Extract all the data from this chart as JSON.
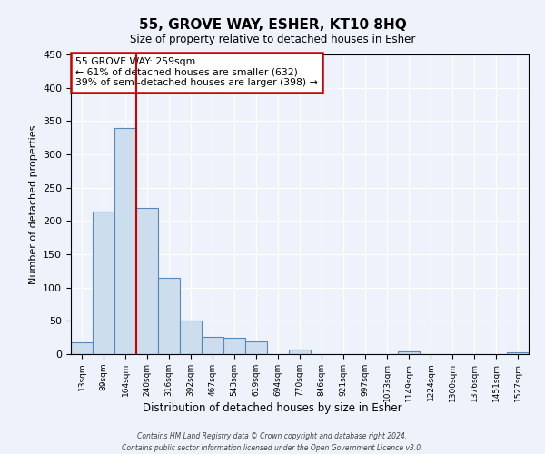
{
  "title": "55, GROVE WAY, ESHER, KT10 8HQ",
  "subtitle": "Size of property relative to detached houses in Esher",
  "xlabel": "Distribution of detached houses by size in Esher",
  "ylabel": "Number of detached properties",
  "bar_labels": [
    "13sqm",
    "89sqm",
    "164sqm",
    "240sqm",
    "316sqm",
    "392sqm",
    "467sqm",
    "543sqm",
    "619sqm",
    "694sqm",
    "770sqm",
    "846sqm",
    "921sqm",
    "997sqm",
    "1073sqm",
    "1149sqm",
    "1224sqm",
    "1300sqm",
    "1376sqm",
    "1451sqm",
    "1527sqm"
  ],
  "bar_values": [
    18,
    214,
    340,
    220,
    115,
    50,
    26,
    24,
    19,
    0,
    7,
    0,
    0,
    0,
    0,
    4,
    0,
    0,
    0,
    0,
    3
  ],
  "bar_color": "#ccdded",
  "bar_edge_color": "#5588bb",
  "vline_x_index": 3,
  "vline_color": "#cc0000",
  "annotation_title": "55 GROVE WAY: 259sqm",
  "annotation_line1": "← 61% of detached houses are smaller (632)",
  "annotation_line2": "39% of semi-detached houses are larger (398) →",
  "annotation_box_color": "#cc0000",
  "ylim": [
    0,
    450
  ],
  "yticks": [
    0,
    50,
    100,
    150,
    200,
    250,
    300,
    350,
    400,
    450
  ],
  "footer1": "Contains HM Land Registry data © Crown copyright and database right 2024.",
  "footer2": "Contains public sector information licensed under the Open Government Licence v3.0.",
  "bg_color": "#eef2fa",
  "plot_bg_color": "#eef2fa"
}
